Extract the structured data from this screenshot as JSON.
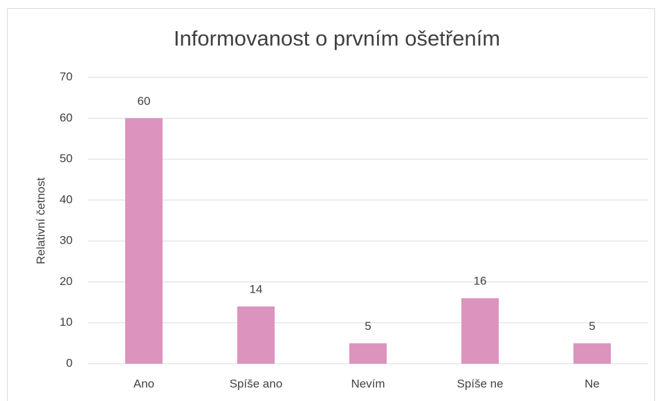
{
  "chart_data": {
    "type": "bar",
    "title": "Informovanost o prvním ošetřením",
    "y_label": "Relativní četnost",
    "categories": [
      "Ano",
      "Spíše ano",
      "Nevím",
      "Spíše ne",
      "Ne"
    ],
    "values": [
      60,
      14,
      5,
      16,
      5
    ],
    "color": "#dc93be",
    "ylim": [
      0,
      70
    ],
    "yticks": [
      0,
      10,
      20,
      30,
      40,
      50,
      60,
      70
    ],
    "grid": true
  }
}
